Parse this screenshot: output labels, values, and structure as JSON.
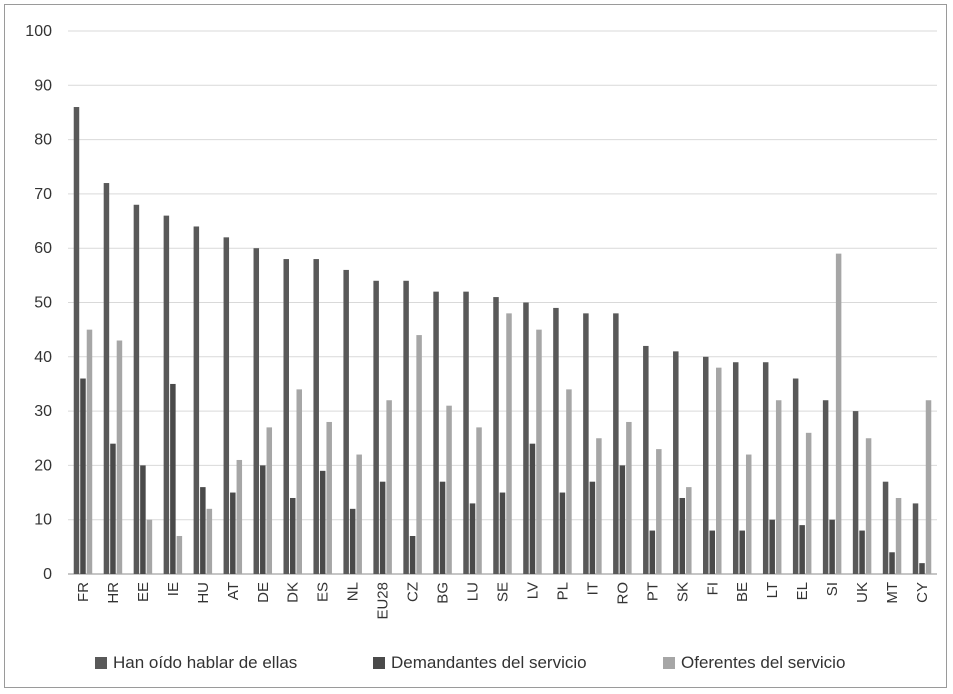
{
  "chart_data": {
    "type": "bar",
    "title": "",
    "xlabel": "",
    "ylabel": "",
    "ylim": [
      0,
      100
    ],
    "yticks": [
      0,
      10,
      20,
      30,
      40,
      50,
      60,
      70,
      80,
      90,
      100
    ],
    "grid": true,
    "legend_position": "bottom",
    "categories": [
      "FR",
      "HR",
      "EE",
      "IE",
      "HU",
      "AT",
      "DE",
      "DK",
      "ES",
      "NL",
      "EU28",
      "CZ",
      "BG",
      "LU",
      "SE",
      "LV",
      "PL",
      "IT",
      "RO",
      "PT",
      "SK",
      "FI",
      "BE",
      "LT",
      "EL",
      "SI",
      "UK",
      "MT",
      "CY"
    ],
    "series": [
      {
        "name": "Han oído hablar de ellas",
        "color": "#595959",
        "values": [
          86,
          72,
          68,
          66,
          64,
          62,
          60,
          58,
          58,
          56,
          54,
          54,
          52,
          52,
          51,
          50,
          49,
          48,
          48,
          42,
          41,
          40,
          39,
          39,
          36,
          32,
          30,
          17,
          13
        ]
      },
      {
        "name": "Demandantes del servicio",
        "color": "#4a4a4a",
        "values": [
          36,
          24,
          20,
          35,
          16,
          15,
          20,
          14,
          19,
          12,
          17,
          7,
          17,
          13,
          15,
          24,
          15,
          17,
          20,
          8,
          14,
          8,
          8,
          10,
          9,
          10,
          8,
          4,
          2
        ]
      },
      {
        "name": "Oferentes del servicio",
        "color": "#a6a6a6",
        "values": [
          45,
          43,
          10,
          7,
          12,
          21,
          27,
          34,
          28,
          22,
          32,
          44,
          31,
          27,
          48,
          45,
          34,
          25,
          28,
          23,
          16,
          38,
          22,
          32,
          26,
          59,
          25,
          14,
          32
        ]
      }
    ]
  }
}
